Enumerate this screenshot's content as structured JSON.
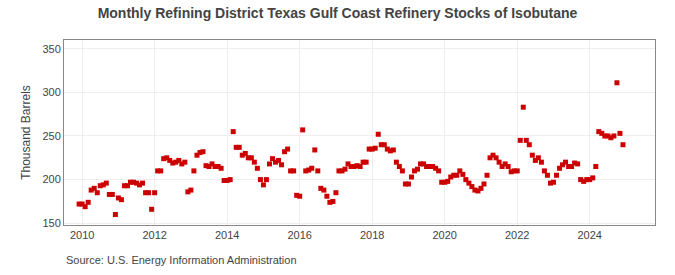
{
  "chart_data": {
    "type": "scatter",
    "title": "Monthly Refining District Texas Gulf Coast Refinery Stocks of Isobutane",
    "ylabel": "Thousand Barrels",
    "annotations": [
      "Source: U.S. Energy Information Administration"
    ],
    "color": "#cc0000",
    "marker": "square",
    "grid": true,
    "xlim": [
      2009.5,
      2025.8
    ],
    "ylim": [
      148,
      360
    ],
    "xticks": [
      2010,
      2012,
      2014,
      2016,
      2018,
      2020,
      2022,
      2024
    ],
    "yticks": [
      150,
      200,
      250,
      300,
      350
    ],
    "x": [
      2009.917,
      2010.0,
      2010.083,
      2010.167,
      2010.25,
      2010.333,
      2010.417,
      2010.5,
      2010.583,
      2010.667,
      2010.75,
      2010.833,
      2010.917,
      2011.0,
      2011.083,
      2011.167,
      2011.25,
      2011.333,
      2011.417,
      2011.5,
      2011.583,
      2011.667,
      2011.75,
      2011.833,
      2011.917,
      2012.0,
      2012.083,
      2012.167,
      2012.25,
      2012.333,
      2012.417,
      2012.5,
      2012.583,
      2012.667,
      2012.75,
      2012.833,
      2012.917,
      2013.0,
      2013.083,
      2013.167,
      2013.25,
      2013.333,
      2013.417,
      2013.5,
      2013.583,
      2013.667,
      2013.75,
      2013.833,
      2013.917,
      2014.0,
      2014.083,
      2014.167,
      2014.25,
      2014.333,
      2014.417,
      2014.5,
      2014.583,
      2014.667,
      2014.75,
      2014.833,
      2014.917,
      2015.0,
      2015.083,
      2015.167,
      2015.25,
      2015.333,
      2015.417,
      2015.5,
      2015.583,
      2015.667,
      2015.75,
      2015.833,
      2015.917,
      2016.0,
      2016.083,
      2016.167,
      2016.25,
      2016.333,
      2016.417,
      2016.5,
      2016.583,
      2016.667,
      2016.75,
      2016.833,
      2016.917,
      2017.0,
      2017.083,
      2017.167,
      2017.25,
      2017.333,
      2017.417,
      2017.5,
      2017.583,
      2017.667,
      2017.75,
      2017.833,
      2017.917,
      2018.0,
      2018.083,
      2018.167,
      2018.25,
      2018.333,
      2018.417,
      2018.5,
      2018.583,
      2018.667,
      2018.75,
      2018.833,
      2018.917,
      2019.0,
      2019.083,
      2019.167,
      2019.25,
      2019.333,
      2019.417,
      2019.5,
      2019.583,
      2019.667,
      2019.75,
      2019.833,
      2019.917,
      2020.0,
      2020.083,
      2020.167,
      2020.25,
      2020.333,
      2020.417,
      2020.5,
      2020.583,
      2020.667,
      2020.75,
      2020.833,
      2020.917,
      2021.0,
      2021.083,
      2021.167,
      2021.25,
      2021.333,
      2021.417,
      2021.5,
      2021.583,
      2021.667,
      2021.75,
      2021.833,
      2021.917,
      2022.0,
      2022.083,
      2022.167,
      2022.25,
      2022.333,
      2022.417,
      2022.5,
      2022.583,
      2022.667,
      2022.75,
      2022.833,
      2022.917,
      2023.0,
      2023.083,
      2023.167,
      2023.25,
      2023.333,
      2023.417,
      2023.5,
      2023.583,
      2023.667,
      2023.75,
      2023.833,
      2023.917,
      2024.0,
      2024.083,
      2024.167,
      2024.25,
      2024.333,
      2024.417,
      2024.5,
      2024.583,
      2024.667,
      2024.75,
      2024.833,
      2024.917
    ],
    "values": [
      172,
      172,
      169,
      174,
      188,
      190,
      185,
      193,
      194,
      196,
      183,
      183,
      160,
      179,
      177,
      193,
      193,
      197,
      197,
      196,
      194,
      196,
      185,
      185,
      166,
      185,
      210,
      210,
      224,
      225,
      222,
      219,
      220,
      222,
      218,
      220,
      186,
      188,
      210,
      228,
      231,
      232,
      216,
      215,
      218,
      215,
      215,
      213,
      199,
      199,
      200,
      255,
      237,
      237,
      228,
      230,
      225,
      225,
      220,
      213,
      200,
      194,
      200,
      218,
      224,
      220,
      222,
      217,
      232,
      235,
      210,
      210,
      182,
      181,
      257,
      210,
      211,
      213,
      234,
      210,
      190,
      188,
      181,
      174,
      175,
      185,
      210,
      210,
      212,
      218,
      215,
      215,
      216,
      215,
      220,
      220,
      235,
      235,
      236,
      252,
      240,
      240,
      235,
      233,
      234,
      220,
      215,
      210,
      195,
      195,
      203,
      210,
      212,
      218,
      218,
      215,
      215,
      215,
      213,
      210,
      197,
      197,
      198,
      203,
      205,
      205,
      210,
      206,
      200,
      196,
      192,
      188,
      187,
      190,
      195,
      205,
      225,
      228,
      225,
      220,
      215,
      218,
      215,
      209,
      210,
      210,
      245,
      283,
      245,
      240,
      228,
      222,
      225,
      220,
      210,
      205,
      196,
      197,
      205,
      213,
      217,
      220,
      215,
      215,
      219,
      218,
      200,
      198,
      200,
      200,
      202,
      215,
      255,
      253,
      250,
      250,
      248,
      250,
      311,
      253,
      240
    ]
  }
}
